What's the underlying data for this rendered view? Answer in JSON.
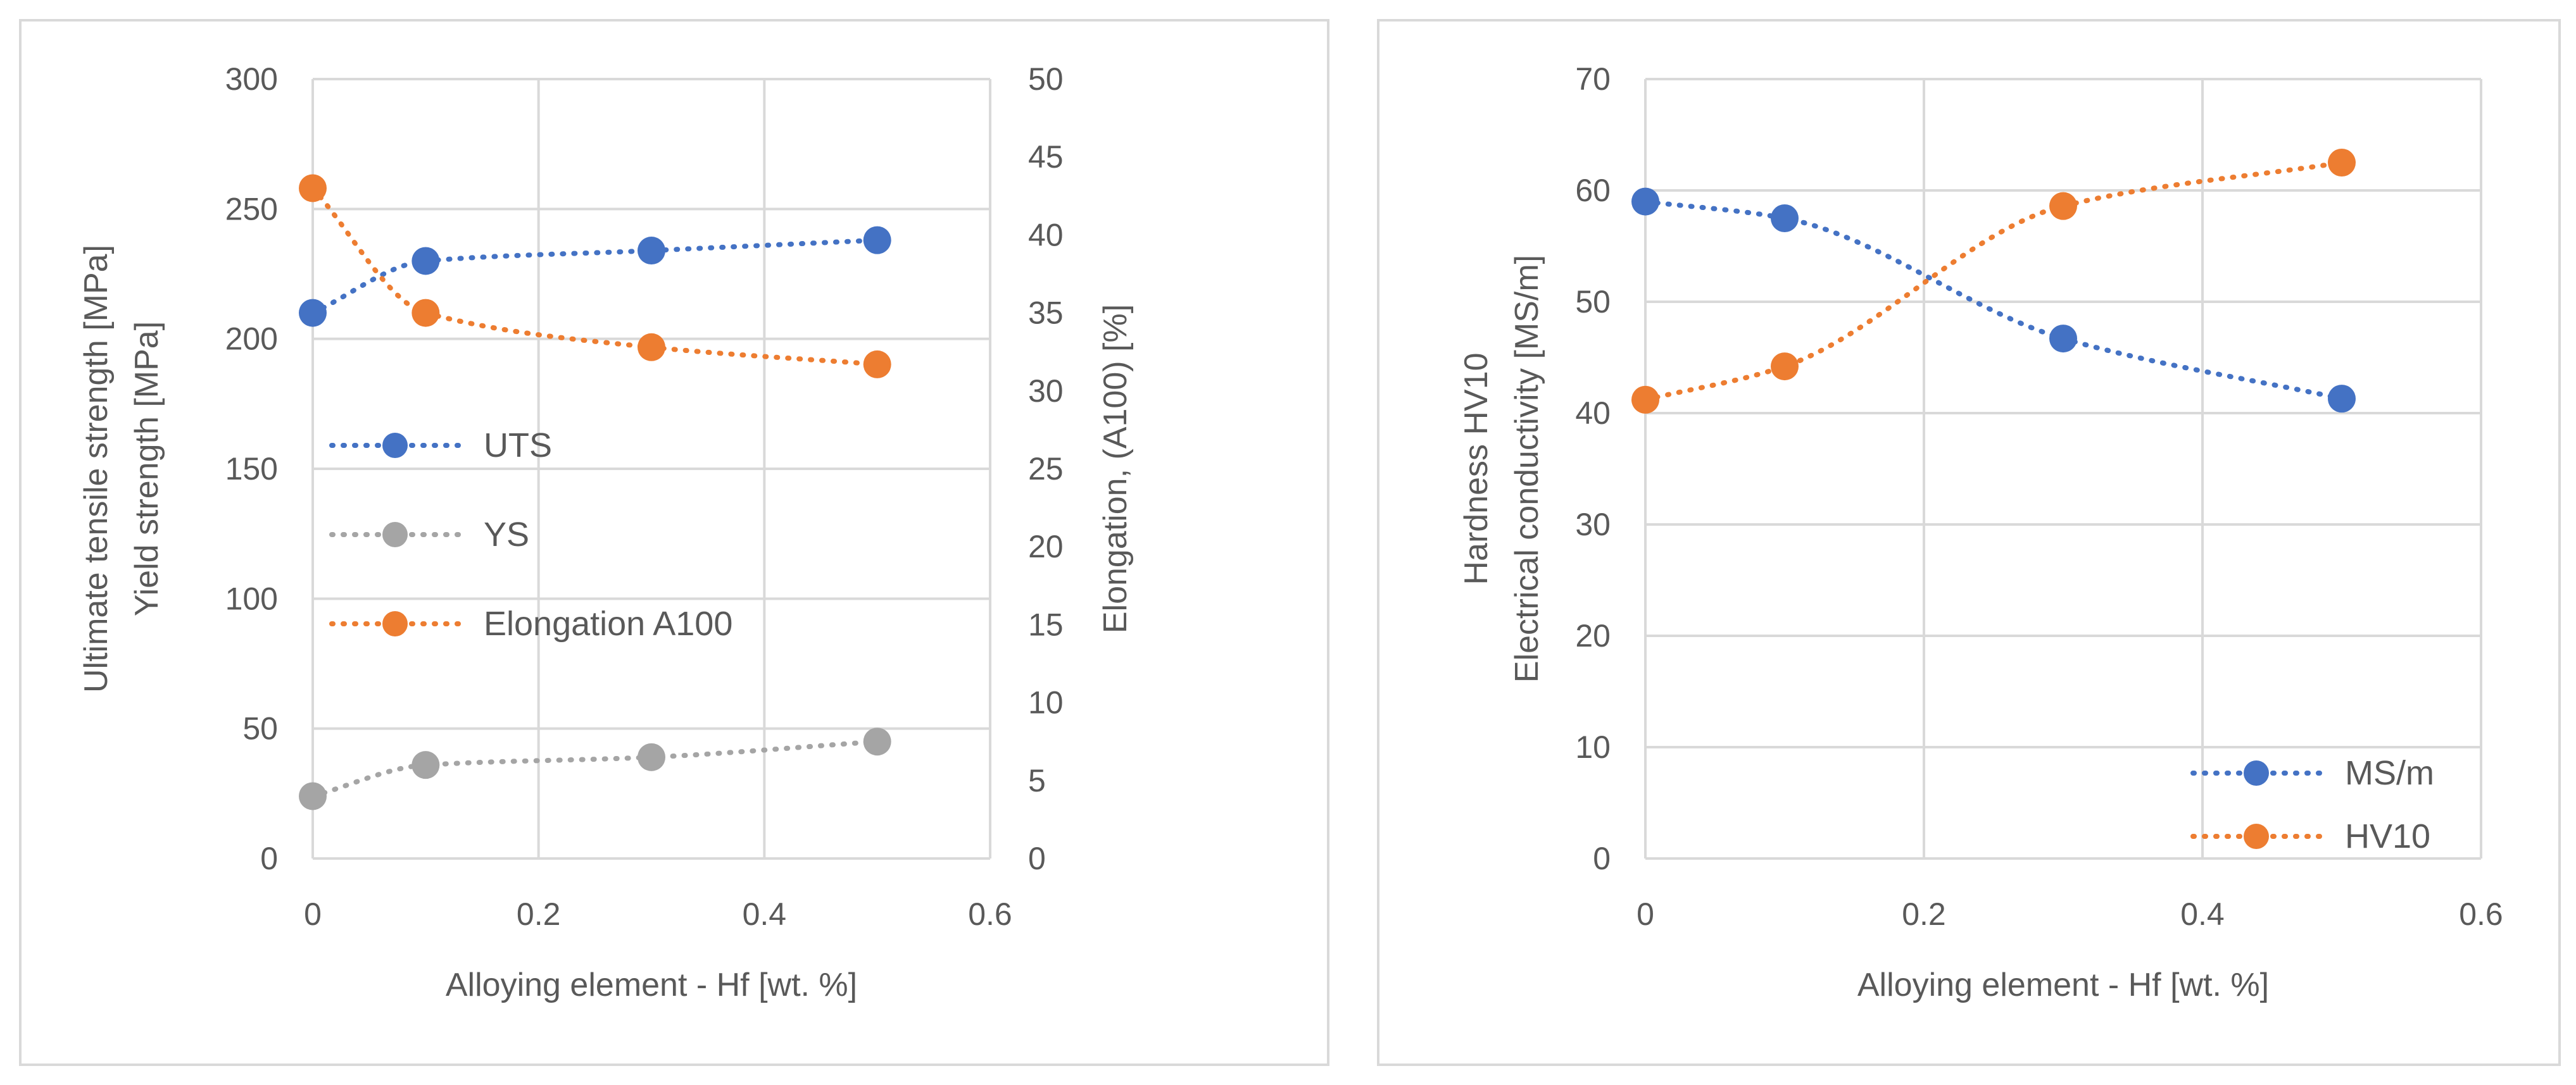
{
  "chart_data": [
    {
      "type": "line",
      "x": [
        0,
        0.1,
        0.3,
        0.5
      ],
      "xlim": [
        0,
        0.6
      ],
      "xticks": [
        "0",
        "0.2",
        "0.4",
        "0.6"
      ],
      "ylim": [
        0,
        300
      ],
      "yticks": [
        "0",
        "50",
        "100",
        "150",
        "200",
        "250",
        "300"
      ],
      "y2lim": [
        0,
        50
      ],
      "y2ticks": [
        "0",
        "5",
        "10",
        "15",
        "20",
        "25",
        "30",
        "35",
        "40",
        "45",
        "50"
      ],
      "xlabel": "Alloying element - Hf [wt. %]",
      "ylabel": [
        "Ultimate tensile strength [MPa]",
        "Yield strength [MPa]"
      ],
      "y2label": "Elongation, (A100) [%]",
      "legend_position": "center-left",
      "series": [
        {
          "name": "UTS",
          "axis": "left",
          "color": "#4472c4",
          "values": [
            210,
            230,
            234,
            238
          ]
        },
        {
          "name": "YS",
          "axis": "left",
          "color": "#a5a5a5",
          "values": [
            24,
            36,
            39,
            45
          ]
        },
        {
          "name": "Elongation A100",
          "axis": "right",
          "color": "#ed7d31",
          "values": [
            43,
            35,
            32.8,
            31.7
          ]
        }
      ]
    },
    {
      "type": "line",
      "x": [
        0,
        0.1,
        0.3,
        0.5
      ],
      "xlim": [
        0,
        0.6
      ],
      "xticks": [
        "0",
        "0.2",
        "0.4",
        "0.6"
      ],
      "ylim": [
        0,
        70
      ],
      "yticks": [
        "0",
        "10",
        "20",
        "30",
        "40",
        "50",
        "60",
        "70"
      ],
      "xlabel": "Alloying element - Hf [wt. %]",
      "ylabel": [
        "Hardness HV10",
        "Electrical conductivity [MS/m]"
      ],
      "legend_position": "bottom-right",
      "series": [
        {
          "name": "MS/m",
          "color": "#4472c4",
          "values": [
            59,
            57.5,
            46.7,
            41.3
          ]
        },
        {
          "name": "HV10",
          "color": "#ed7d31",
          "values": [
            41.2,
            44.2,
            58.6,
            62.5
          ]
        }
      ]
    }
  ]
}
